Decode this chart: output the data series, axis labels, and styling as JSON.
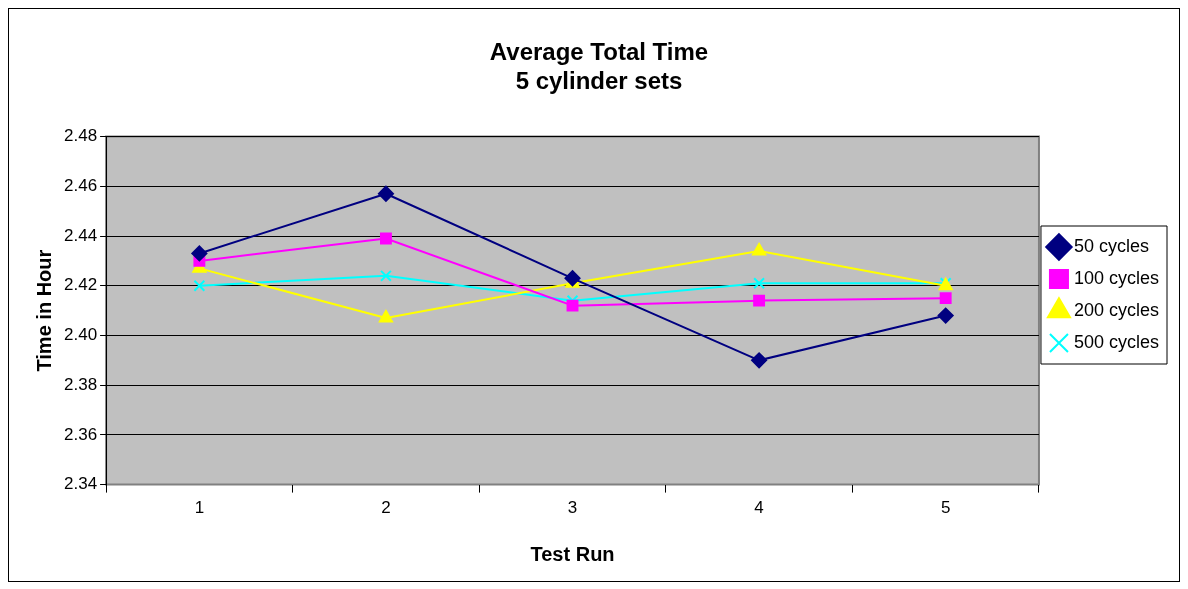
{
  "chart_data": {
    "type": "line",
    "title": [
      "Average Total Time",
      "5 cylinder sets"
    ],
    "xlabel": "Test Run",
    "ylabel": "Time in Hour",
    "categories": [
      "1",
      "2",
      "3",
      "4",
      "5"
    ],
    "series": [
      {
        "name": "50 cycles",
        "color": "#000080",
        "marker": "diamond",
        "values": [
          2.433,
          2.457,
          2.423,
          2.39,
          2.408
        ]
      },
      {
        "name": "100 cycles",
        "color": "#ff00ff",
        "marker": "square",
        "values": [
          2.43,
          2.439,
          2.412,
          2.414,
          2.415
        ]
      },
      {
        "name": "200 cycles",
        "color": "#ffff00",
        "marker": "triangle",
        "values": [
          2.427,
          2.407,
          2.421,
          2.434,
          2.42
        ]
      },
      {
        "name": "500 cycles",
        "color": "#00ffff",
        "marker": "cross",
        "values": [
          2.42,
          2.424,
          2.414,
          2.421,
          2.421
        ]
      }
    ],
    "ylim": [
      2.34,
      2.48
    ],
    "yticks": [
      2.34,
      2.36,
      2.38,
      {
        "value": 2.4,
        "label": "2.40"
      },
      2.42,
      2.44,
      2.46,
      2.48
    ],
    "grid": "y",
    "legend": "right",
    "line_style": "solid"
  }
}
